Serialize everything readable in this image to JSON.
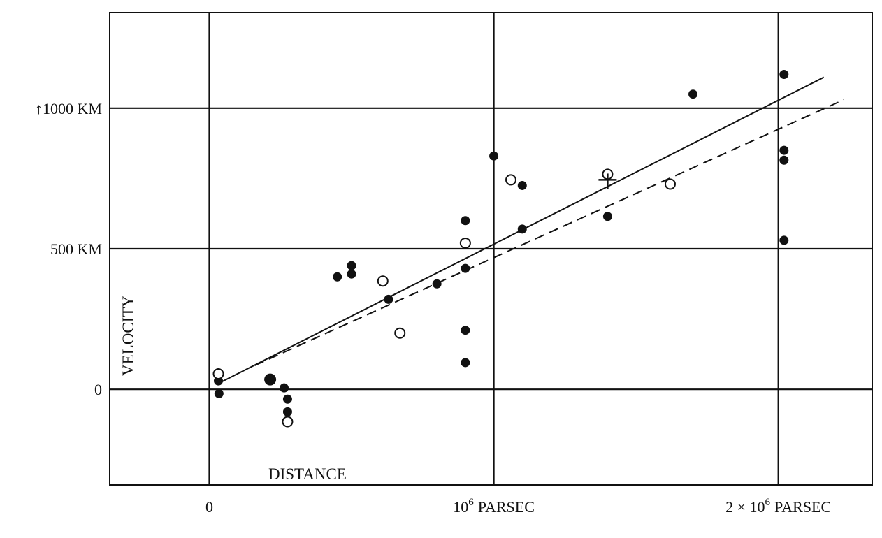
{
  "chart_data": {
    "type": "scatter",
    "title": "",
    "xlabel": "DISTANCE",
    "ylabel": "VELOCITY",
    "x_unit": "PARSEC",
    "xlim": [
      -350000.0,
      2330000.0
    ],
    "ylim": [
      -340,
      1340
    ],
    "x_ticks": [
      {
        "value": 0,
        "base": "0",
        "exp": "",
        "unit": ""
      },
      {
        "value": 1000000,
        "base": "10",
        "exp": "6",
        "unit": "PARSEC"
      },
      {
        "value": 2000000,
        "base": "2 × 10",
        "exp": "6",
        "unit": "PARSEC"
      }
    ],
    "y_ticks": [
      {
        "value": 0,
        "label": "0"
      },
      {
        "value": 500,
        "label": "500 KM"
      },
      {
        "value": 1000,
        "label": "↑1000 KM"
      }
    ],
    "grid": true,
    "series": [
      {
        "marker": "filled-circle",
        "points": [
          {
            "x": 32000.0,
            "y": 30
          },
          {
            "x": 34000.0,
            "y": -15
          },
          {
            "x": 214000.0,
            "y": 35
          },
          {
            "x": 263000.0,
            "y": 5
          },
          {
            "x": 275000.0,
            "y": -35
          },
          {
            "x": 275000.0,
            "y": -80
          },
          {
            "x": 450000.0,
            "y": 400
          },
          {
            "x": 500000.0,
            "y": 440
          },
          {
            "x": 500000.0,
            "y": 410
          },
          {
            "x": 630000.0,
            "y": 320
          },
          {
            "x": 800000.0,
            "y": 375
          },
          {
            "x": 900000.0,
            "y": 600
          },
          {
            "x": 900000.0,
            "y": 430
          },
          {
            "x": 900000.0,
            "y": 210
          },
          {
            "x": 900000.0,
            "y": 95
          },
          {
            "x": 1000000.0,
            "y": 830
          },
          {
            "x": 1100000.0,
            "y": 725
          },
          {
            "x": 1100000.0,
            "y": 570
          },
          {
            "x": 1400000.0,
            "y": 615
          },
          {
            "x": 1700000.0,
            "y": 1050
          },
          {
            "x": 2020000.0,
            "y": 1120
          },
          {
            "x": 2020000.0,
            "y": 850
          },
          {
            "x": 2020000.0,
            "y": 815
          },
          {
            "x": 2020000.0,
            "y": 530
          }
        ]
      },
      {
        "marker": "open-circle",
        "points": [
          {
            "x": 32000.0,
            "y": 55
          },
          {
            "x": 275000.0,
            "y": -115
          },
          {
            "x": 610000.0,
            "y": 385
          },
          {
            "x": 670000.0,
            "y": 200
          },
          {
            "x": 900000.0,
            "y": 520
          },
          {
            "x": 1060000.0,
            "y": 745
          },
          {
            "x": 1400000.0,
            "y": 765
          },
          {
            "x": 1620000.0,
            "y": 730
          }
        ]
      },
      {
        "marker": "cross",
        "points": [
          {
            "x": 1400000.0,
            "y": 745
          }
        ]
      },
      {
        "line": "solid",
        "points": [
          {
            "x": 40000.0,
            "y": 25
          },
          {
            "x": 2160000.0,
            "y": 1110
          }
        ]
      },
      {
        "line": "dashed",
        "points": [
          {
            "x": 160000.0,
            "y": 85
          },
          {
            "x": 2230000.0,
            "y": 1030
          }
        ]
      }
    ]
  }
}
